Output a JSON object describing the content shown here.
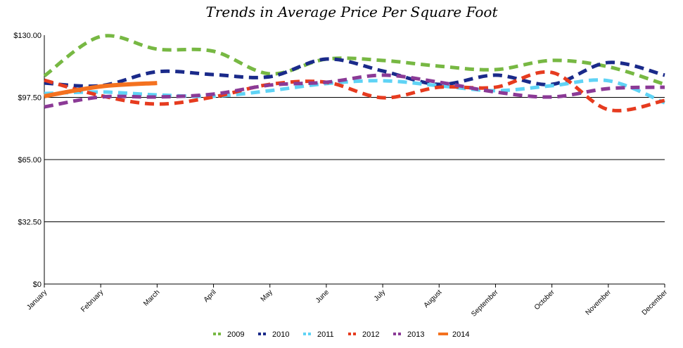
{
  "chart_data": {
    "type": "line",
    "title": "Trends in Average Price Per Square Foot",
    "categories": [
      "January",
      "February",
      "March",
      "April",
      "May",
      "June",
      "July",
      "August",
      "September",
      "October",
      "November",
      "December"
    ],
    "series": [
      {
        "name": "2009",
        "color": "#77b843",
        "dashed": true,
        "values": [
          108.7,
          129.3,
          122.7,
          121.6,
          109.8,
          117.5,
          116.8,
          113.8,
          112,
          116.8,
          113.5,
          104.3
        ]
      },
      {
        "name": "2010",
        "color": "#1a2a8a",
        "dashed": true,
        "values": [
          105,
          103.6,
          110.9,
          109.4,
          108.3,
          117.5,
          111.3,
          104.3,
          109.1,
          104.3,
          115.7,
          109.1
        ]
      },
      {
        "name": "2011",
        "color": "#5fd3f5",
        "dashed": true,
        "values": [
          99.5,
          100.3,
          98.8,
          98.1,
          101,
          104.7,
          106.2,
          103.6,
          101,
          103.6,
          106.2,
          94.7
        ]
      },
      {
        "name": "2012",
        "color": "#e63b1f",
        "dashed": true,
        "values": [
          106.5,
          98.4,
          94,
          97.7,
          104.3,
          105.4,
          97.3,
          102.8,
          102.8,
          110.5,
          91.1,
          95.9
        ]
      },
      {
        "name": "2013",
        "color": "#8b3a96",
        "dashed": true,
        "values": [
          92.5,
          97.7,
          97.7,
          99.2,
          103.9,
          105.4,
          109.1,
          105.4,
          100.3,
          97.7,
          102.1,
          102.8
        ]
      },
      {
        "name": "2014",
        "color": "#f4711f",
        "dashed": false,
        "values": [
          98.1,
          103.2,
          105,
          null,
          null,
          null,
          null,
          null,
          null,
          null,
          null,
          null
        ]
      }
    ],
    "ylim": [
      0,
      130
    ],
    "yticks": [
      {
        "value": 0,
        "label": "$0"
      },
      {
        "value": 32.5,
        "label": "$32.50"
      },
      {
        "value": 65,
        "label": "$65.00"
      },
      {
        "value": 97.5,
        "label": "$97.50"
      },
      {
        "value": 130,
        "label": "$130.00"
      }
    ],
    "grid": true,
    "legend": "bottom"
  }
}
